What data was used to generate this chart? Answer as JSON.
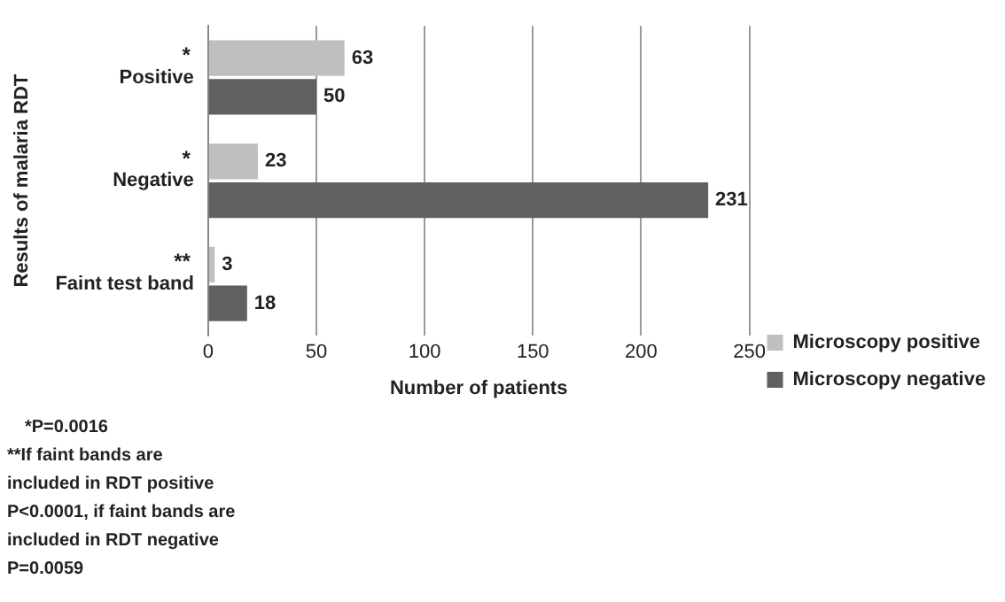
{
  "chart_data": {
    "type": "bar",
    "orientation": "horizontal",
    "xlabel": "Number of patients",
    "ylabel": "Results of malaria RDT",
    "categories": [
      "Positive",
      "Negative",
      "Faint test band"
    ],
    "series": [
      {
        "name": "Microscopy positive",
        "color": "#bfbfbf",
        "values": [
          63,
          23,
          3
        ]
      },
      {
        "name": "Microscopy negative",
        "color": "#606060",
        "values": [
          50,
          231,
          18
        ]
      }
    ],
    "xlim": [
      0,
      250
    ],
    "xticks": [
      0,
      50,
      100,
      150,
      200,
      250
    ],
    "grid": "x",
    "legend": "right",
    "data_labels": true,
    "annotations": [
      "*",
      "*",
      "**",
      "*P=0.0016",
      "**If faint bands are included in RDT positive P<0.0001, if faint bands are included in RDT negative P=0.0059"
    ]
  }
}
